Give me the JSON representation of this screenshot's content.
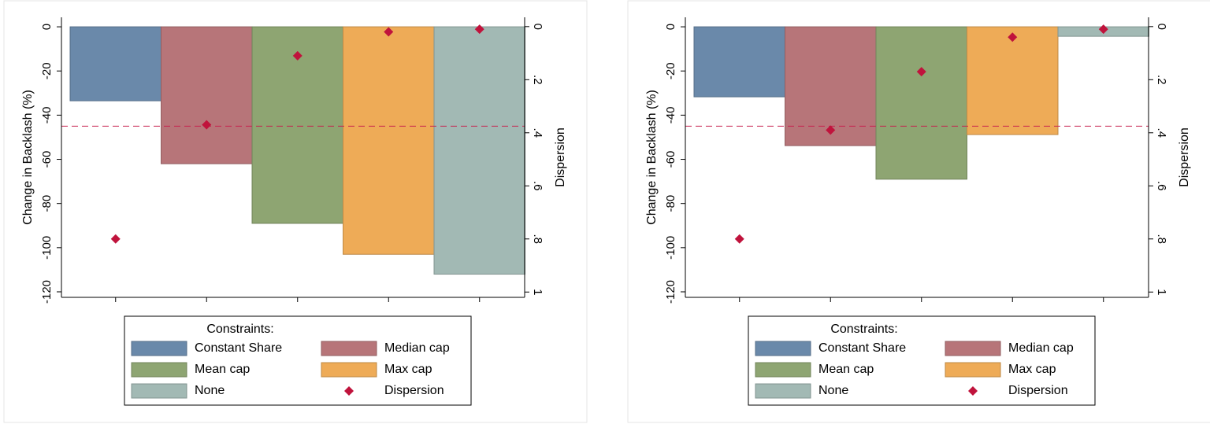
{
  "chart_data": [
    {
      "type": "bar",
      "y_label": "Change in Backlash (%)",
      "y2_label": "Dispersion",
      "legend_title": "Constraints:",
      "categories": [
        null,
        null,
        null,
        null,
        null
      ],
      "ylim": [
        -122.5,
        4.3
      ],
      "yticks": [
        0,
        -20,
        -40,
        -60,
        -80,
        -100,
        -120
      ],
      "y2lim": [
        1.02,
        -0.035
      ],
      "y2ticks": [
        0,
        {
          "value": 0.2,
          "label": ".2"
        },
        {
          "value": 0.4,
          "label": ".4"
        },
        {
          "value": 0.6,
          "label": ".6"
        },
        {
          "value": 0.8,
          "label": ".8"
        },
        1
      ],
      "ref_line": -45,
      "ref_color": "#c8204e",
      "series": [
        {
          "name": "Constant Share",
          "color": "#6a89aa",
          "values": [
            -33.5,
            null,
            null,
            null,
            null
          ]
        },
        {
          "name": "Median cap",
          "color": "#b77579",
          "values": [
            null,
            -62,
            null,
            null,
            null
          ]
        },
        {
          "name": "Mean cap",
          "color": "#8ea572",
          "values": [
            null,
            null,
            -89,
            null,
            null
          ]
        },
        {
          "name": "Max cap",
          "color": "#eeab57",
          "values": [
            null,
            null,
            null,
            -103,
            null
          ]
        },
        {
          "name": "None",
          "color": "#a2b9b4",
          "values": [
            null,
            null,
            null,
            null,
            -112
          ]
        },
        {
          "name": "Dispersion",
          "type": "scatter",
          "axis": "y2",
          "color": "#c0133c",
          "values": [
            0.8,
            0.37,
            0.11,
            0.02,
            0.01
          ]
        }
      ]
    },
    {
      "type": "bar",
      "y_label": "Change in Backlash (%)",
      "y2_label": "Dispersion",
      "legend_title": "Constraints:",
      "categories": [
        null,
        null,
        null,
        null,
        null
      ],
      "ylim": [
        -122.5,
        4.3
      ],
      "yticks": [
        0,
        -20,
        -40,
        -60,
        -80,
        -100,
        -120
      ],
      "y2lim": [
        1.02,
        -0.035
      ],
      "y2ticks": [
        0,
        {
          "value": 0.2,
          "label": ".2"
        },
        {
          "value": 0.4,
          "label": ".4"
        },
        {
          "value": 0.6,
          "label": ".6"
        },
        {
          "value": 0.8,
          "label": ".8"
        },
        1
      ],
      "ref_line": -45,
      "ref_color": "#c8204e",
      "series": [
        {
          "name": "Constant Share",
          "color": "#6a89aa",
          "values": [
            -31.7,
            null,
            null,
            null,
            null
          ]
        },
        {
          "name": "Median cap",
          "color": "#b77579",
          "values": [
            null,
            -53.8,
            null,
            null,
            null
          ]
        },
        {
          "name": "Mean cap",
          "color": "#8ea572",
          "values": [
            null,
            null,
            -69,
            null,
            null
          ]
        },
        {
          "name": "Max cap",
          "color": "#eeab57",
          "values": [
            null,
            null,
            null,
            -48.8,
            null
          ]
        },
        {
          "name": "None",
          "color": "#a2b9b4",
          "values": [
            null,
            null,
            null,
            null,
            -4.3
          ]
        },
        {
          "name": "Dispersion",
          "type": "scatter",
          "axis": "y2",
          "color": "#c0133c",
          "values": [
            0.8,
            0.39,
            0.17,
            0.04,
            0.01
          ]
        }
      ]
    }
  ]
}
